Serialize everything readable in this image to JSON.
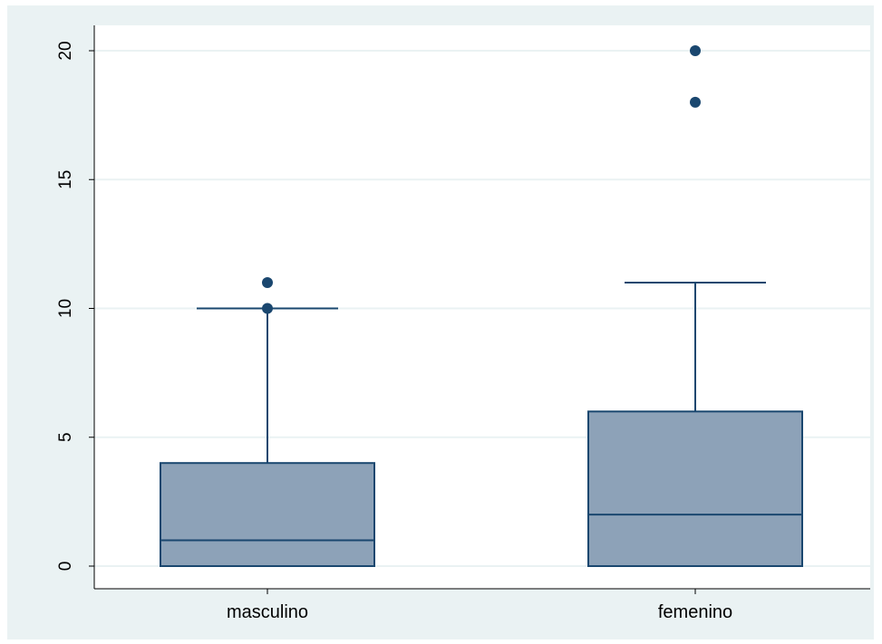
{
  "chart_data": {
    "type": "box",
    "title": "",
    "xlabel": "",
    "ylabel": "",
    "ylim": [
      -0.9,
      21.6
    ],
    "yticks": [
      0,
      5,
      10,
      15,
      20
    ],
    "grid": true,
    "categories": [
      "masculino",
      "femenino"
    ],
    "boxes": [
      {
        "category": "masculino",
        "whisker_low": 0,
        "q1": 0,
        "median": 1,
        "q3": 4,
        "whisker_high": 10,
        "outliers": [
          10,
          11
        ]
      },
      {
        "category": "femenino",
        "whisker_low": 0,
        "q1": 0,
        "median": 2,
        "q3": 6,
        "whisker_high": 11,
        "outliers": [
          18,
          20
        ]
      }
    ],
    "colors": {
      "box_fill": "#8da2b8",
      "line": "#1a476f",
      "grid": "#eaf2f3",
      "background": "#eaf2f3",
      "plot_background": "#ffffff"
    }
  }
}
